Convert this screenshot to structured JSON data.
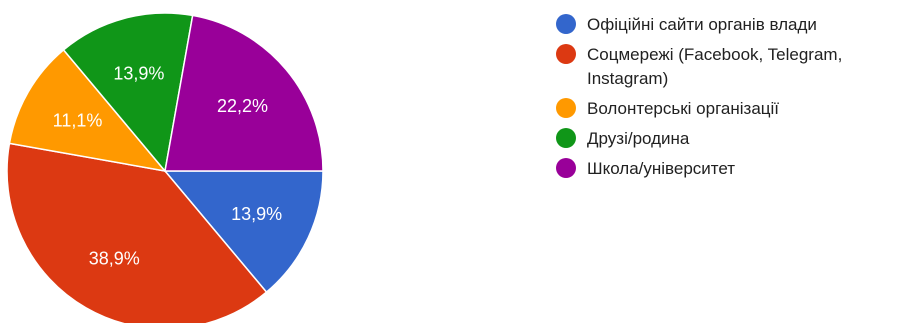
{
  "chart_data": {
    "type": "pie",
    "slices": [
      {
        "label": "Офіційні сайти органів влади",
        "value": 13.9,
        "display": "13,9%",
        "color": "#3366cc"
      },
      {
        "label": "Соцмережі (Facebook, Telegram, Instagram)",
        "value": 38.9,
        "display": "38,9%",
        "color": "#dc3912"
      },
      {
        "label": "Волонтерські організації",
        "value": 11.1,
        "display": "11,1%",
        "color": "#ff9900"
      },
      {
        "label": "Друзі/родина",
        "value": 13.9,
        "display": "13,9%",
        "color": "#109618"
      },
      {
        "label": "Школа/університет",
        "value": 22.2,
        "display": "22,2%",
        "color": "#990099"
      }
    ],
    "legend_position": "right"
  }
}
